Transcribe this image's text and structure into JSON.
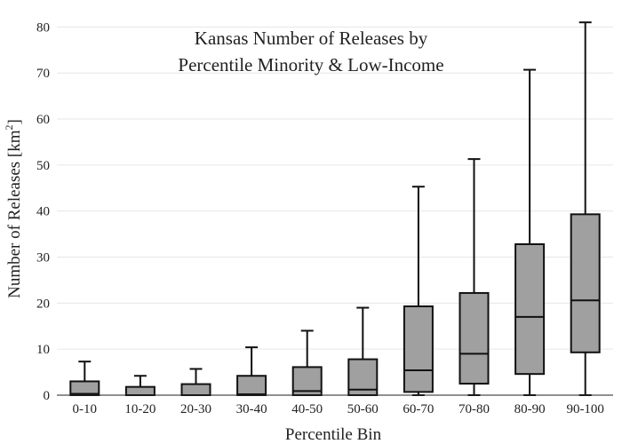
{
  "chart_data": {
    "type": "box",
    "title_lines": [
      "Kansas Number of Releases by",
      "Percentile Minority & Low-Income"
    ],
    "xlabel": "Percentile Bin",
    "ylabel_main": "Number of Releases  [km",
    "ylabel_sup": "2",
    "ylabel_end": "]",
    "ylim": [
      0,
      82
    ],
    "yticks": [
      0,
      10,
      20,
      30,
      40,
      50,
      60,
      70,
      80
    ],
    "grid": true,
    "categories": [
      "0-10",
      "10-20",
      "20-30",
      "30-40",
      "40-50",
      "50-60",
      "60-70",
      "70-80",
      "80-90",
      "90-100"
    ],
    "boxes": [
      {
        "category": "0-10",
        "min": 0,
        "q1": 0,
        "median": 0.3,
        "q3": 3,
        "max": 7.3
      },
      {
        "category": "10-20",
        "min": 0,
        "q1": 0,
        "median": 0,
        "q3": 1.8,
        "max": 4.2
      },
      {
        "category": "20-30",
        "min": 0,
        "q1": 0,
        "median": 0,
        "q3": 2.4,
        "max": 5.7
      },
      {
        "category": "30-40",
        "min": 0,
        "q1": 0,
        "median": 0.2,
        "q3": 4.2,
        "max": 10.4
      },
      {
        "category": "40-50",
        "min": 0,
        "q1": 0,
        "median": 0.9,
        "q3": 6.1,
        "max": 14
      },
      {
        "category": "50-60",
        "min": 0,
        "q1": 0,
        "median": 1.2,
        "q3": 7.8,
        "max": 19
      },
      {
        "category": "60-70",
        "min": 0,
        "q1": 0.7,
        "median": 5.4,
        "q3": 19.3,
        "max": 45.3
      },
      {
        "category": "70-80",
        "min": 0,
        "q1": 2.5,
        "median": 9,
        "q3": 22.2,
        "max": 51.3
      },
      {
        "category": "80-90",
        "min": 0,
        "q1": 4.6,
        "median": 17,
        "q3": 32.8,
        "max": 70.7
      },
      {
        "category": "90-100",
        "min": 0,
        "q1": 9.3,
        "median": 20.6,
        "q3": 39.3,
        "max": 81
      }
    ]
  }
}
